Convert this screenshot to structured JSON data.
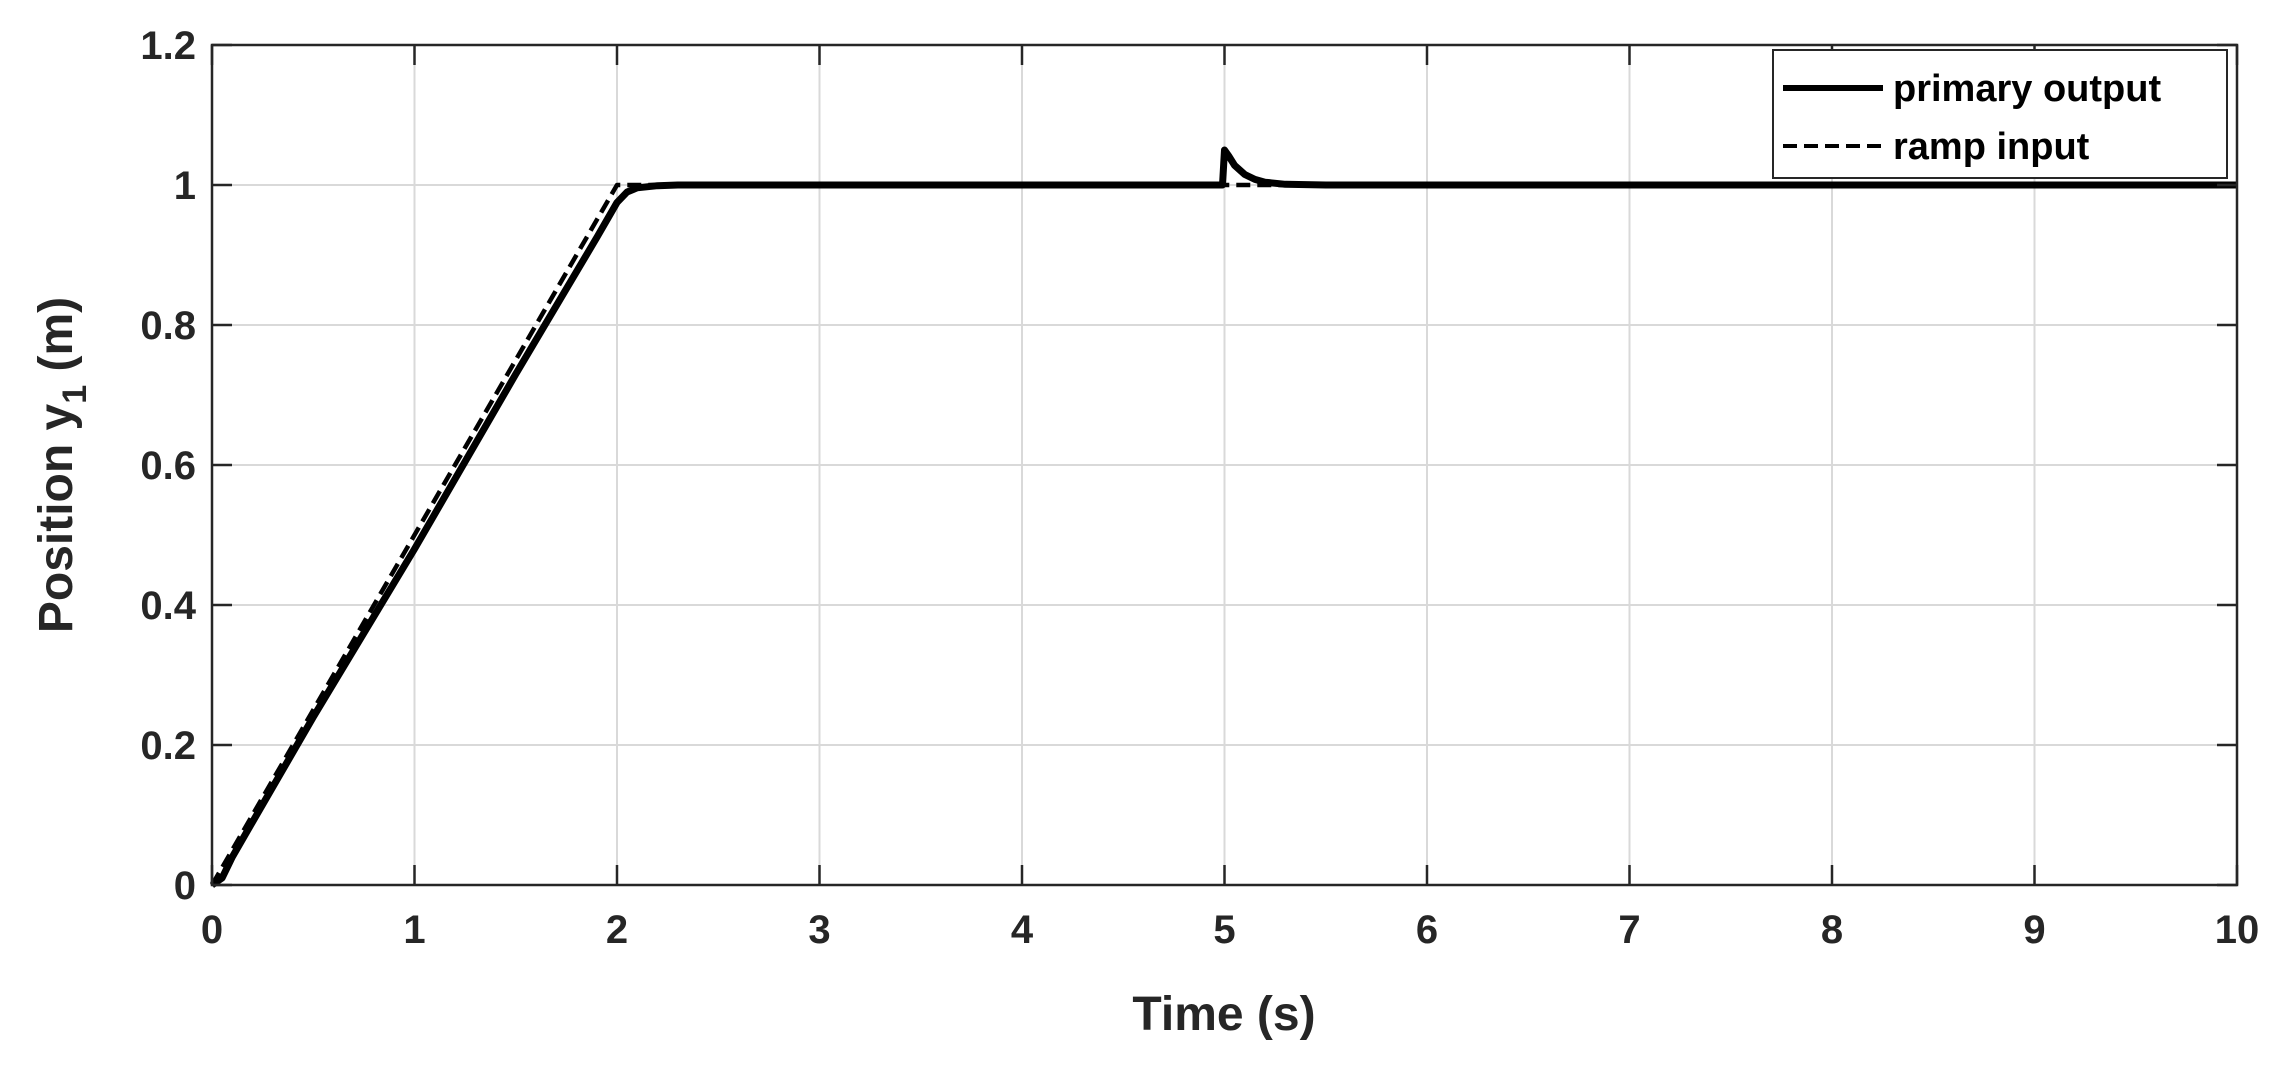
{
  "chart_data": {
    "type": "line",
    "title": "",
    "xlabel": "Time (s)",
    "ylabel_main": "Position y",
    "ylabel_subscript": "1",
    "ylabel_suffix": " (m)",
    "xlim": [
      0,
      10
    ],
    "ylim": [
      0,
      1.2
    ],
    "xticks": [
      0,
      1,
      2,
      3,
      4,
      5,
      6,
      7,
      8,
      9,
      10
    ],
    "xtick_labels": [
      "0",
      "1",
      "2",
      "3",
      "4",
      "5",
      "6",
      "7",
      "8",
      "9",
      "10"
    ],
    "yticks": [
      0,
      0.2,
      0.4,
      0.6,
      0.8,
      1.0,
      1.2
    ],
    "ytick_labels": [
      "0",
      "0.2",
      "0.4",
      "0.6",
      "0.8",
      "1",
      "1.2"
    ],
    "grid": true,
    "legend_position": "top-right",
    "colors": {
      "axis": "#262626",
      "grid": "#d9d9d9",
      "series": "#000000",
      "background": "#ffffff"
    },
    "series": [
      {
        "name": "primary output",
        "style": "solid",
        "x": [
          0,
          0.05,
          0.1,
          0.2,
          0.5,
          1.0,
          1.5,
          1.9,
          1.95,
          2.0,
          2.05,
          2.1,
          2.2,
          2.3,
          3.0,
          4.0,
          4.99,
          5.0,
          5.02,
          5.05,
          5.1,
          5.15,
          5.2,
          5.3,
          5.5,
          6.0,
          8.0,
          10.0
        ],
        "y": [
          0,
          0.01,
          0.04,
          0.09,
          0.24,
          0.48,
          0.73,
          0.925,
          0.95,
          0.975,
          0.99,
          0.996,
          0.999,
          1.0,
          1.0,
          1.0,
          1.0,
          1.05,
          1.042,
          1.028,
          1.015,
          1.008,
          1.004,
          1.001,
          1.0,
          1.0,
          1.0,
          1.0
        ]
      },
      {
        "name": "ramp input",
        "style": "dashed",
        "x": [
          0,
          2.0,
          10.0
        ],
        "y": [
          0,
          1.0,
          1.0
        ]
      }
    ]
  }
}
